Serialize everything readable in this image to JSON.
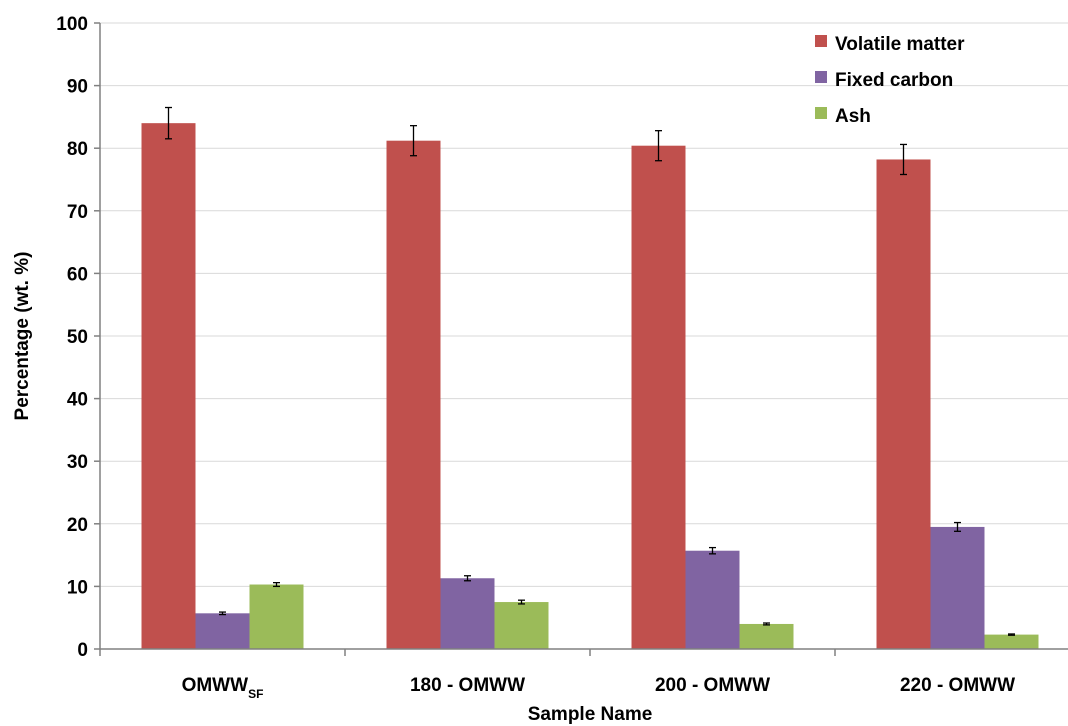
{
  "chart_data": {
    "type": "bar",
    "title": "",
    "xlabel": "Sample Name",
    "ylabel": "Percentage (wt. %)",
    "ylim": [
      0,
      100
    ],
    "yticks": [
      0,
      10,
      20,
      30,
      40,
      50,
      60,
      70,
      80,
      90,
      100
    ],
    "grid": "horizontal",
    "legend": "top-right",
    "categories": [
      {
        "main": "OMWW",
        "sub": "SF"
      },
      {
        "main": "180 - OMWW",
        "sub": ""
      },
      {
        "main": "200 - OMWW",
        "sub": ""
      },
      {
        "main": "220 - OMWW",
        "sub": ""
      }
    ],
    "series": [
      {
        "name": "Volatile matter",
        "color": "#c0504d",
        "values": [
          84.0,
          81.2,
          80.4,
          78.2
        ],
        "errors": [
          2.5,
          2.4,
          2.4,
          2.4
        ]
      },
      {
        "name": "Fixed carbon",
        "color": "#8064a2",
        "values": [
          5.7,
          11.3,
          15.7,
          19.5
        ],
        "errors": [
          0.2,
          0.4,
          0.5,
          0.7
        ]
      },
      {
        "name": "Ash",
        "color": "#9bbb59",
        "values": [
          10.3,
          7.5,
          4.0,
          2.3
        ],
        "errors": [
          0.3,
          0.3,
          0.15,
          0.1
        ]
      }
    ]
  }
}
